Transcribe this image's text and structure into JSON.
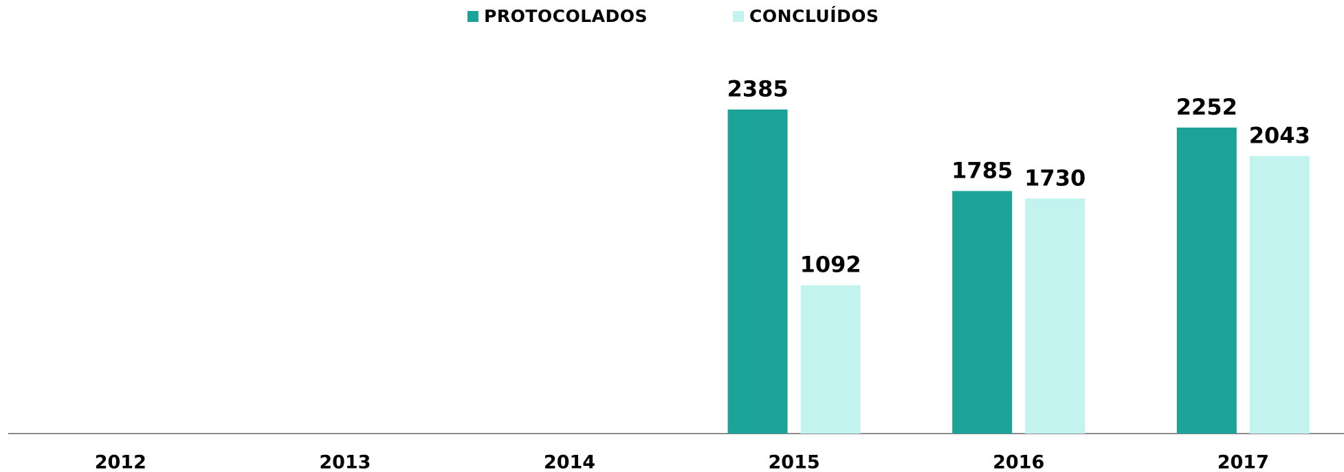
{
  "chart_data": {
    "type": "bar",
    "categories": [
      "2012",
      "2013",
      "2014",
      "2015",
      "2016",
      "2017"
    ],
    "series": [
      {
        "name": "PROTOCOLADOS",
        "color": "#1ba398",
        "values": [
          null,
          null,
          null,
          2385,
          1785,
          2252
        ]
      },
      {
        "name": "CONCLUÍDOS",
        "color": "#c2f3ee",
        "values": [
          null,
          null,
          null,
          1092,
          1730,
          2043
        ]
      }
    ],
    "ylim": [
      0,
      2600
    ],
    "legend": "top"
  }
}
